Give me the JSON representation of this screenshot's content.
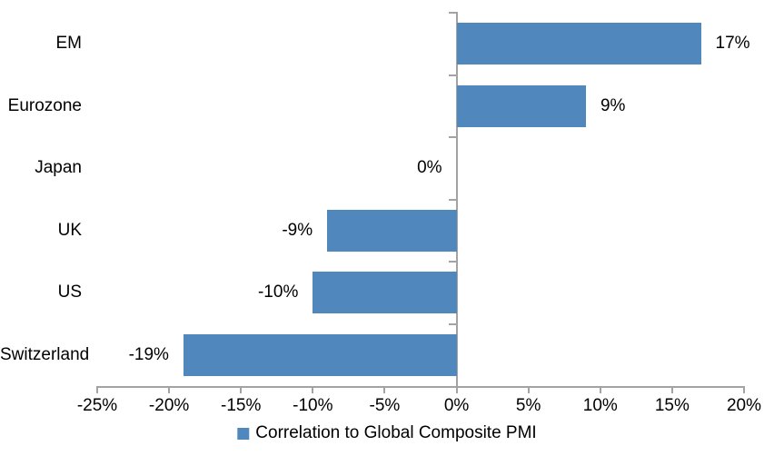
{
  "chart_data": {
    "type": "bar",
    "orientation": "horizontal",
    "title": "",
    "xlabel": "",
    "ylabel": "",
    "categories": [
      "EM",
      "Eurozone",
      "Japan",
      "UK",
      "US",
      "Switzerland"
    ],
    "series": [
      {
        "name": "Correlation to Global Composite PMI",
        "values": [
          17,
          9,
          0,
          -9,
          -10,
          -19
        ],
        "value_labels": [
          "17%",
          "9%",
          "0%",
          "-9%",
          "-10%",
          "-19%"
        ]
      }
    ],
    "xlim": [
      -25,
      20
    ],
    "x_ticks": [
      -25,
      -20,
      -15,
      -10,
      -5,
      0,
      5,
      10,
      15,
      20
    ],
    "x_tick_labels": [
      "-25%",
      "-20%",
      "-15%",
      "-10%",
      "-5%",
      "0%",
      "5%",
      "10%",
      "15%",
      "20%"
    ],
    "grid": false,
    "legend_position": "bottom-center",
    "colors": {
      "bar": "#5087BD",
      "axis": "#A3A3A3",
      "text": "#000000",
      "background": "#ffffff"
    }
  },
  "legend": {
    "label": "Correlation to Global Composite PMI"
  }
}
